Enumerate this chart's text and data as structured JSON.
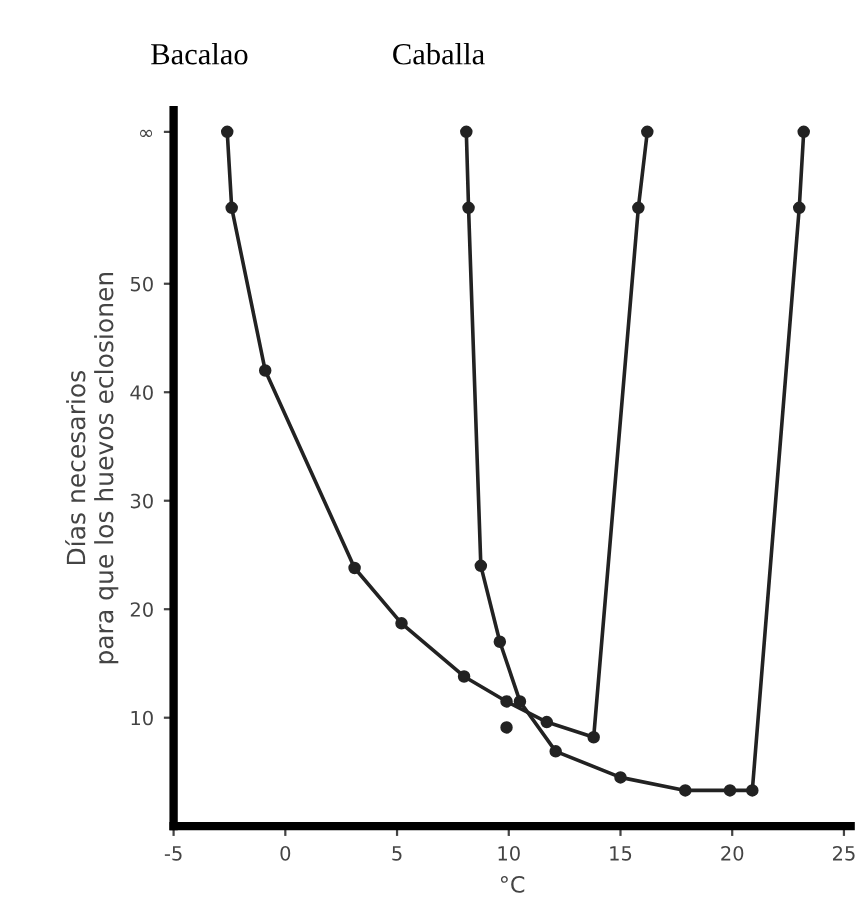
{
  "chart_data": {
    "type": "line",
    "xlabel": "°C",
    "ylabel": "Días necesarios\npara que los huevos eclosionen",
    "xlim": [
      -5,
      25.3
    ],
    "ylim": [
      0,
      66
    ],
    "xticks": [
      -5,
      0,
      5,
      10,
      15,
      20,
      25
    ],
    "yticks": [
      10,
      20,
      30,
      40,
      50,
      {
        "value": 64,
        "label": "∞"
      }
    ],
    "marker": "circle",
    "grid": false,
    "legend": false,
    "series": [
      {
        "name": "Bacalao",
        "color": "#222222",
        "x": [
          -2.6,
          -2.4,
          -0.9,
          3.1,
          5.2,
          8.0,
          9.9,
          11.7,
          13.8,
          15.8,
          16.2
        ],
        "values": [
          64,
          57,
          42,
          23.8,
          18.7,
          13.8,
          11.5,
          9.6,
          8.2,
          57,
          64
        ]
      },
      {
        "name": "Caballa",
        "color": "#222222",
        "x": [
          8.1,
          8.2,
          8.75,
          9.6,
          10.5,
          12.1,
          15.0,
          17.9,
          19.9,
          20.9,
          23.0,
          23.2
        ],
        "values": [
          64,
          57,
          24,
          17,
          11.5,
          6.9,
          4.5,
          3.3,
          3.3,
          3.3,
          57,
          64
        ]
      },
      {
        "type": "scatter",
        "color": "#222222",
        "x": [
          9.9
        ],
        "values": [
          9.1
        ]
      }
    ]
  }
}
